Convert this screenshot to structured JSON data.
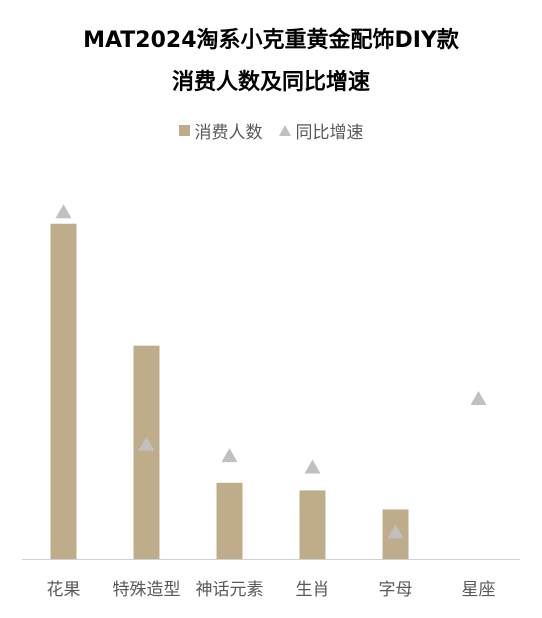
{
  "chart_data": {
    "type": "bar",
    "title": "MAT2024淘系小克重黄金配饰DIY款",
    "subtitle": "消费人数及同比增速",
    "categories": [
      "花果",
      "特殊造型",
      "神话元素",
      "生肖",
      "字母",
      "星座"
    ],
    "series": [
      {
        "name": "消费人数",
        "kind": "bar",
        "values": [
          88,
          56,
          20,
          18,
          13,
          0
        ]
      },
      {
        "name": "同比增速",
        "kind": "marker",
        "marker": "triangle",
        "values": [
          91,
          30,
          27,
          24,
          7,
          42
        ]
      }
    ],
    "ylim": [
      0,
      100
    ],
    "grid": false,
    "legend_position": "top",
    "colors": {
      "bar": "#bfac8a",
      "marker": "#c0c0c0",
      "axis": "#d0d0d0",
      "text": "#595959"
    }
  }
}
